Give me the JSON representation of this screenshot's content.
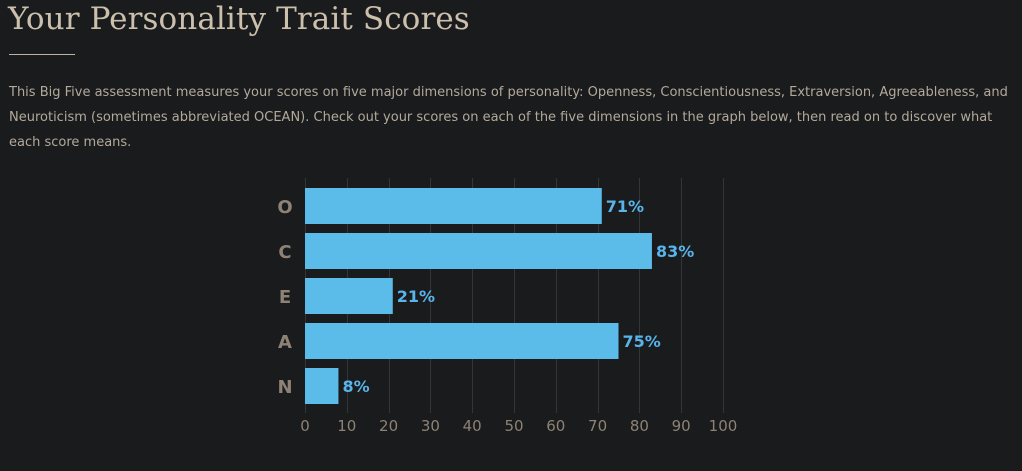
{
  "page": {
    "title": "Your Personality Trait Scores",
    "intro": "This Big Five assessment measures your scores on five major dimensions of personality: Openness, Conscientiousness, Extraversion, Agreeableness, and Neuroticism (sometimes abbreviated OCEAN). Check out your scores on each of the five dimensions in the graph below, then read on to discover what each score means."
  },
  "colors": {
    "background": "#1a1b1d",
    "bar": "#5bbce9",
    "value_label": "#58b4ea",
    "axis_text": "#8d8275",
    "title": "#ccc0ad"
  },
  "chart_data": {
    "type": "bar",
    "orientation": "horizontal",
    "categories": [
      "O",
      "C",
      "E",
      "A",
      "N"
    ],
    "values": [
      71,
      83,
      21,
      75,
      8
    ],
    "value_labels": [
      "71%",
      "83%",
      "21%",
      "75%",
      "8%"
    ],
    "xlim": [
      0,
      100
    ],
    "x_ticks": [
      0,
      10,
      20,
      30,
      40,
      50,
      60,
      70,
      80,
      90,
      100
    ],
    "grid": "vertical",
    "legend": "none",
    "title": "",
    "xlabel": "",
    "ylabel": ""
  }
}
